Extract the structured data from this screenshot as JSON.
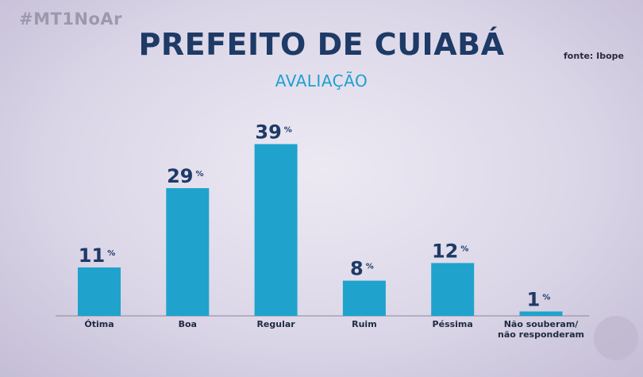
{
  "header": {
    "hashtag": "#MT1NoAr",
    "title": "PREFEITO DE CUIABÁ",
    "subtitle": "AVALIAÇÃO",
    "source": "fonte: Ibope"
  },
  "colors": {
    "bar": "#1fa3cc",
    "title": "#1e3a66",
    "subtitle": "#1f9fd0",
    "value_label": "#1e3a66",
    "axis": "#8c879a"
  },
  "logo_icon": "tv-channel-logo-icon",
  "chart_data": {
    "type": "bar",
    "title": "PREFEITO DE CUIABÁ",
    "subtitle": "AVALIAÇÃO",
    "categories": [
      "Ótima",
      "Boa",
      "Regular",
      "Ruim",
      "Péssima",
      "Não souberam/\nnão responderam"
    ],
    "values": [
      11,
      29,
      39,
      8,
      12,
      1
    ],
    "unit": "%",
    "xlabel": "",
    "ylabel": "",
    "ylim": [
      0,
      45
    ],
    "grid": false,
    "legend": "none"
  }
}
